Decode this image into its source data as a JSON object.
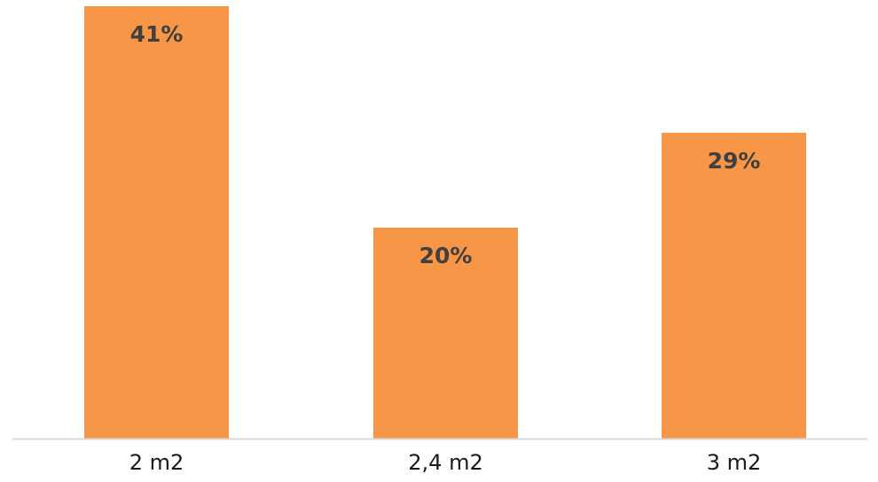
{
  "chart_data": {
    "type": "bar",
    "categories": [
      "2 m2",
      "2,4 m2",
      "3 m2"
    ],
    "values": [
      41,
      20,
      29
    ],
    "value_labels": [
      "41%",
      "20%",
      "29%"
    ],
    "title": "",
    "xlabel": "",
    "ylabel": "",
    "ylim": [
      0,
      41
    ],
    "grid": false,
    "legend": "none",
    "colors": {
      "bar": "#F79646",
      "axis": "#D9D9D9",
      "label": "#404040",
      "tick": "#1a1a1a"
    }
  }
}
